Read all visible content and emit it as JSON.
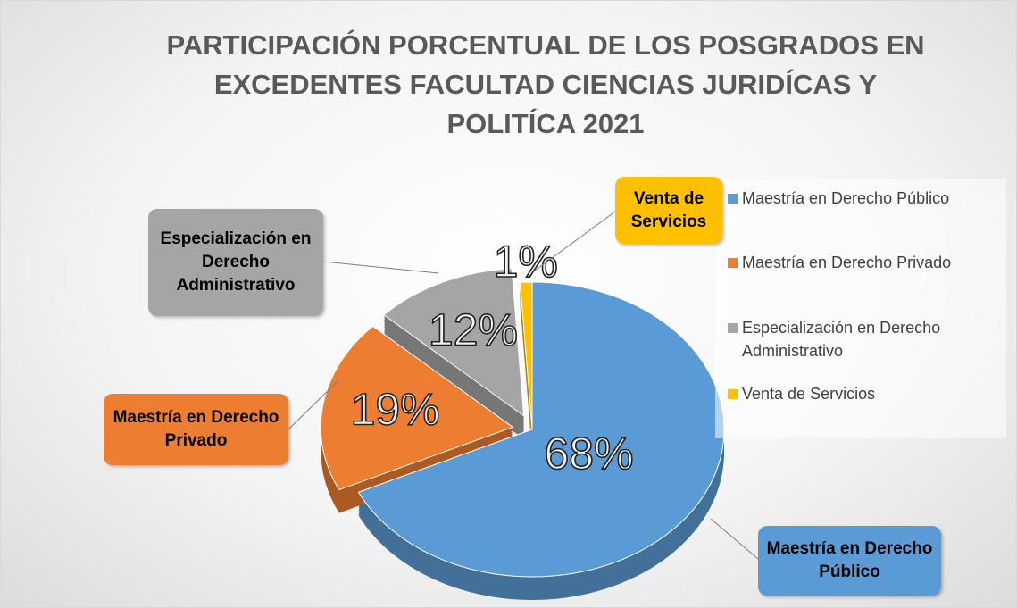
{
  "chart_data": {
    "type": "pie3d",
    "title": "PARTICIPACIÓN PORCENTUAL DE LOS POSGRADOS EN EXCEDENTES  FACULTAD CIENCIAS JURIDÍCAS Y POLITÍCA 2021",
    "categories": [
      "Maestría en Derecho Público",
      "Maestría en Derecho Privado",
      "Especialización en Derecho Administrativo",
      "Venta de Servicios"
    ],
    "values": [
      68,
      19,
      12,
      1
    ],
    "value_labels": [
      "68%",
      "19%",
      "12%",
      "1%"
    ],
    "colors": [
      "#5b9bd5",
      "#ed7d31",
      "#a5a5a5",
      "#ffc000"
    ],
    "legend": "right"
  }
}
